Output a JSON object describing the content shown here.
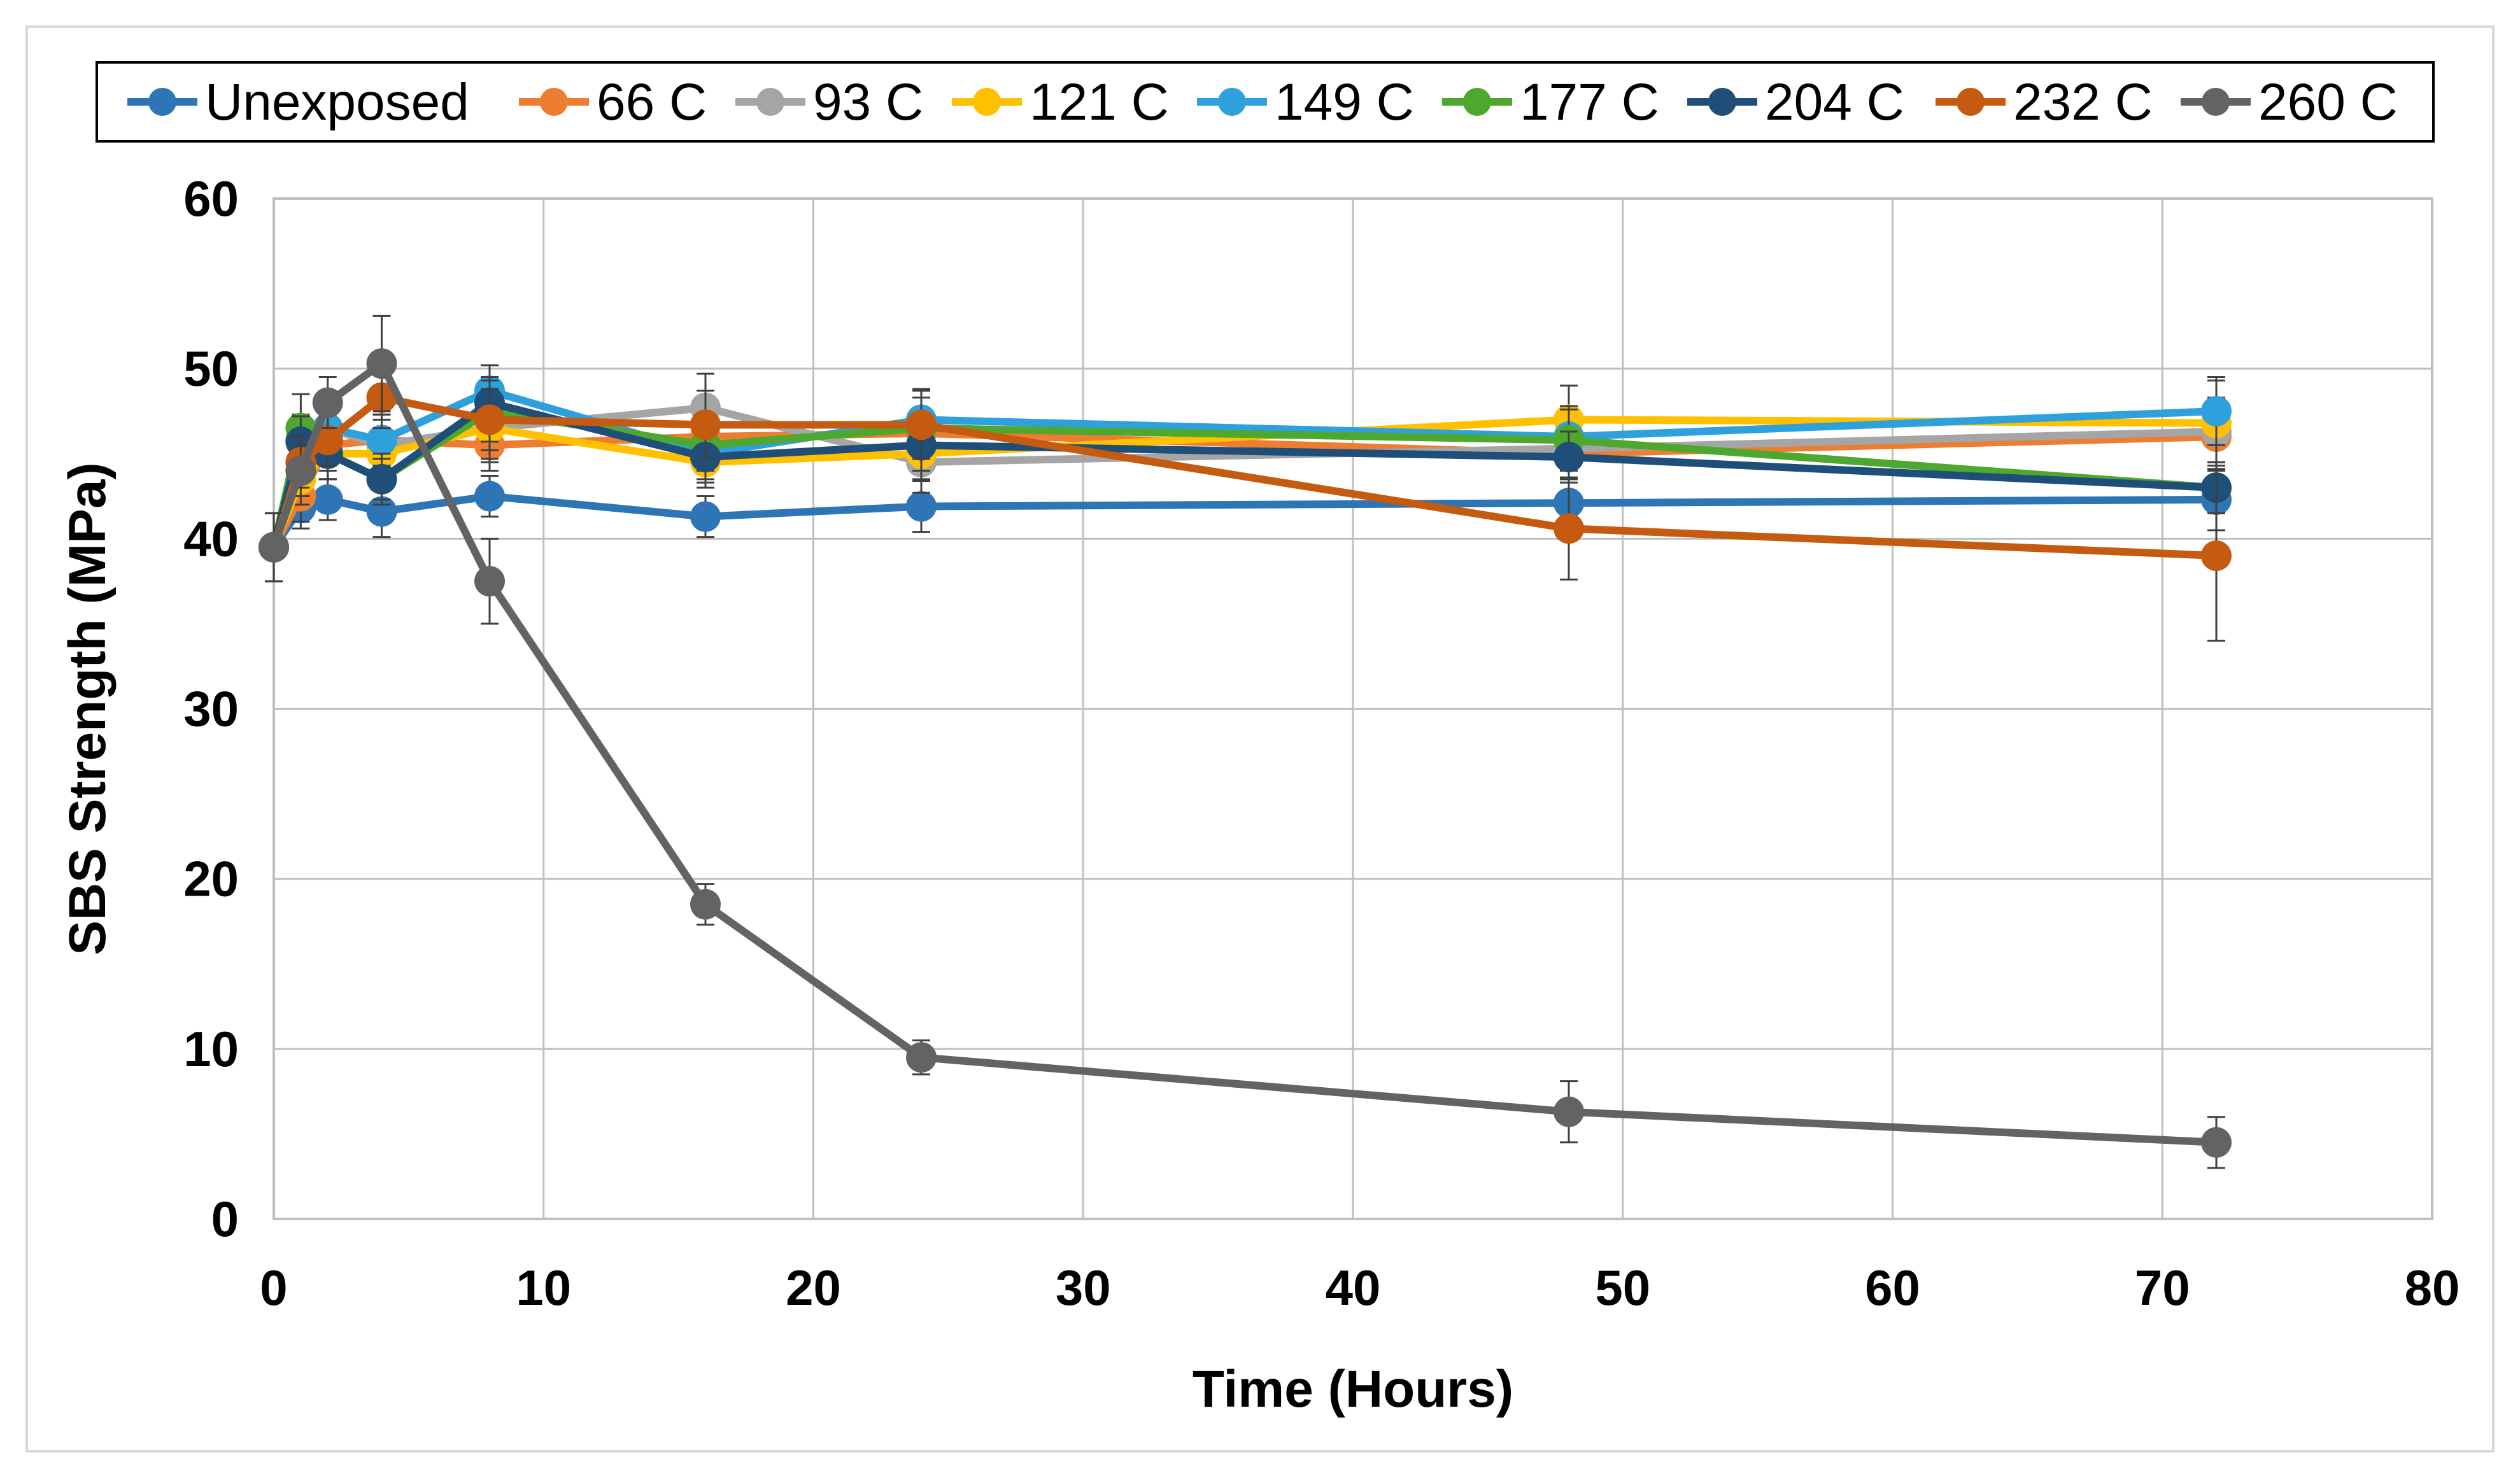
{
  "chart_data": {
    "type": "line",
    "title": "",
    "xlabel": "Time (Hours)",
    "ylabel": "SBS Strength (MPa)",
    "xlim": [
      0,
      80
    ],
    "ylim": [
      0,
      60
    ],
    "xticks": [
      0,
      10,
      20,
      30,
      40,
      50,
      60,
      70,
      80
    ],
    "yticks": [
      0,
      10,
      20,
      30,
      40,
      50,
      60
    ],
    "grid": true,
    "legend_position": "top",
    "x": [
      0,
      1,
      2,
      4,
      8,
      16,
      24,
      48,
      72
    ],
    "series": [
      {
        "name": "Unexposed",
        "color": "#2e75b6",
        "values": [
          39.5,
          41.8,
          42.3,
          41.6,
          42.5,
          41.3,
          41.9,
          42.1,
          42.3
        ],
        "errors": [
          2.0,
          1.2,
          1.2,
          1.5,
          1.2,
          1.2,
          1.5,
          1.5,
          1.8
        ]
      },
      {
        "name": "66 C",
        "color": "#ed7d31",
        "values": [
          39.5,
          42.5,
          45.5,
          45.8,
          45.5,
          46.0,
          46.2,
          45.0,
          46.0
        ],
        "errors": [
          2.0,
          1.5,
          1.5,
          1.5,
          1.5,
          1.5,
          1.5,
          1.5,
          2.0
        ]
      },
      {
        "name": "93 C",
        "color": "#a5a5a5",
        "values": [
          39.5,
          44.5,
          46.5,
          45.5,
          46.5,
          47.7,
          44.5,
          45.3,
          46.3
        ],
        "errors": [
          2.0,
          2.0,
          2.0,
          1.5,
          2.0,
          2.0,
          1.8,
          1.8,
          2.0
        ]
      },
      {
        "name": "121 C",
        "color": "#ffc000",
        "values": [
          39.5,
          43.5,
          45.0,
          45.0,
          46.5,
          44.5,
          45.0,
          47.0,
          46.8
        ],
        "errors": [
          2.0,
          1.5,
          1.5,
          1.5,
          1.8,
          1.5,
          1.5,
          2.0,
          2.5
        ]
      },
      {
        "name": "149 C",
        "color": "#2ea1dc",
        "values": [
          39.5,
          45.8,
          46.5,
          45.8,
          48.7,
          45.0,
          47.0,
          46.0,
          47.5
        ],
        "errors": [
          2.0,
          1.5,
          1.5,
          1.5,
          1.5,
          1.5,
          1.8,
          1.8,
          2.0
        ]
      },
      {
        "name": "177 C",
        "color": "#4ea72e",
        "values": [
          39.5,
          46.5,
          45.0,
          43.5,
          47.5,
          45.5,
          46.5,
          45.8,
          43.0
        ],
        "errors": [
          2.0,
          2.0,
          1.5,
          1.5,
          1.8,
          1.5,
          1.8,
          1.8,
          1.5
        ]
      },
      {
        "name": "204 C",
        "color": "#1f4e79",
        "values": [
          39.5,
          45.7,
          45.0,
          43.5,
          48.0,
          44.8,
          45.5,
          44.8,
          43.0
        ],
        "errors": [
          2.0,
          1.5,
          1.5,
          1.2,
          1.5,
          1.5,
          1.5,
          1.5,
          1.5
        ]
      },
      {
        "name": "232 C",
        "color": "#c55a11",
        "values": [
          39.5,
          44.5,
          45.8,
          48.3,
          47.0,
          46.7,
          46.7,
          40.6,
          39.0
        ],
        "errors": [
          2.0,
          1.5,
          1.5,
          1.8,
          1.8,
          2.0,
          2.0,
          3.0,
          5.0
        ]
      },
      {
        "name": "260 C",
        "color": "#636363",
        "values": [
          39.5,
          44.0,
          48.0,
          50.3,
          37.5,
          18.5,
          9.5,
          6.3,
          4.5
        ],
        "errors": [
          2.0,
          1.5,
          1.5,
          2.8,
          2.5,
          1.2,
          1.0,
          1.8,
          1.5
        ]
      }
    ]
  }
}
